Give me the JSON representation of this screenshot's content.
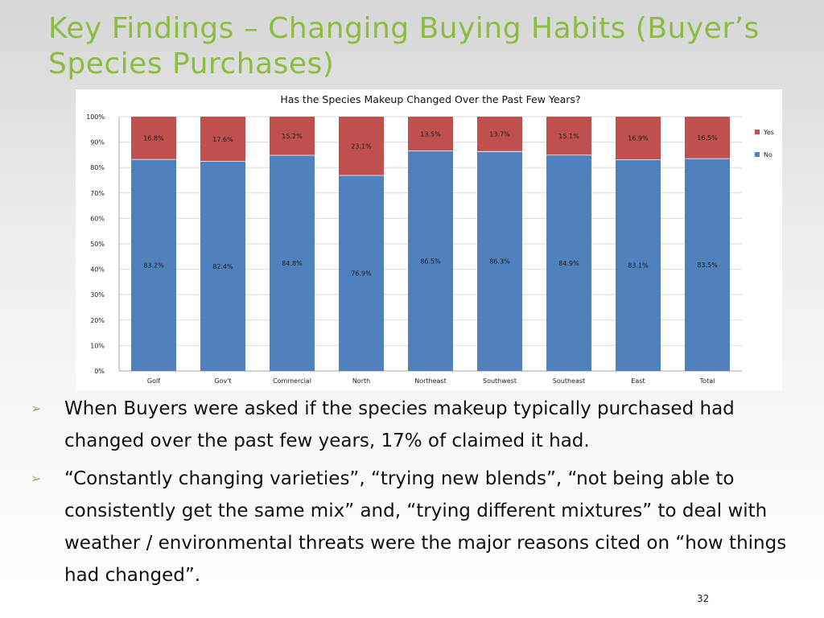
{
  "slide": {
    "title": "Key Findings – Changing Buying Habits (Buyer’s Species Purchases)",
    "page_number": "32",
    "bullet_marker": "➢",
    "bullets": [
      "When Buyers were asked if the species makeup typically purchased had changed over the past few years, 17% of claimed it had.",
      "“Constantly changing varieties”, “trying new blends”, “not being able to consistently get the same mix” and, “trying different mixtures” to deal with weather  / environmental threats were the major reasons cited on “how things had changed”."
    ]
  },
  "chart_data": {
    "type": "bar",
    "stacked": true,
    "normalized_percent": true,
    "title": "Has the Species Makeup Changed Over the Past Few Years?",
    "xlabel": "",
    "ylabel": "",
    "ylim": [
      0,
      100
    ],
    "y_ticks": [
      "0%",
      "10%",
      "20%",
      "30%",
      "40%",
      "50%",
      "60%",
      "70%",
      "80%",
      "90%",
      "100%"
    ],
    "categories": [
      "Golf",
      "Gov't",
      "Commercial",
      "North",
      "Northeast",
      "Southwest",
      "Southeast",
      "East",
      "Total"
    ],
    "series": [
      {
        "name": "No",
        "color": "#4f81bd",
        "values": [
          83.2,
          82.4,
          84.8,
          76.9,
          86.5,
          86.3,
          84.9,
          83.1,
          83.5
        ],
        "labels": [
          "83.2%",
          "82.4%",
          "84.8%",
          "76.9%",
          "86.5%",
          "86.3%",
          "84.9%",
          "83.1%",
          "83.5%"
        ]
      },
      {
        "name": "Yes",
        "color": "#c0504d",
        "values": [
          16.8,
          17.6,
          15.2,
          23.1,
          13.5,
          13.7,
          15.1,
          16.9,
          16.5
        ],
        "labels": [
          "16.8%",
          "17.6%",
          "15.2%",
          "23.1%",
          "13.5%",
          "13.7%",
          "15.1%",
          "16.9%",
          "16.5%"
        ]
      }
    ],
    "legend": {
      "position": "right",
      "order": [
        "Yes",
        "No"
      ]
    },
    "grid": true
  }
}
